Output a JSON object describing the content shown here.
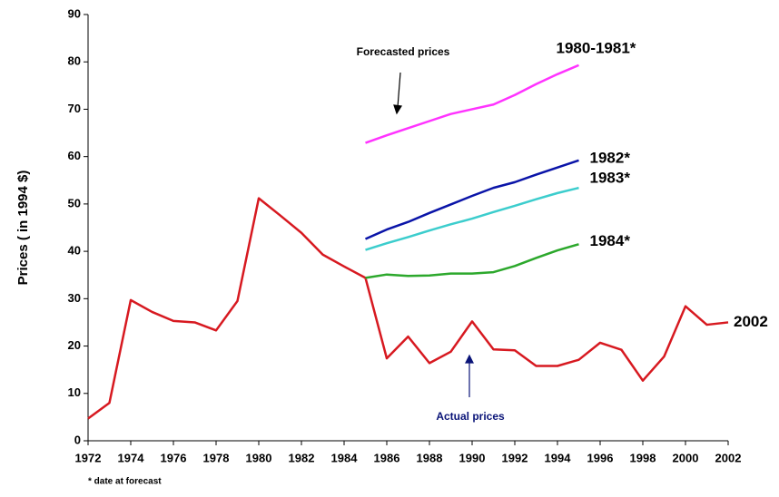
{
  "chart_data": {
    "type": "line",
    "y_label": "Prices ( in 1994 $)",
    "annotations": [
      "Forecasted prices",
      "Actual prices"
    ],
    "footnote": "* date at forecast",
    "xlim": [
      1972,
      2002
    ],
    "xticks": [
      1972,
      1974,
      1976,
      1978,
      1980,
      1982,
      1984,
      1986,
      1988,
      1990,
      1992,
      1994,
      1996,
      1998,
      2000,
      2002
    ],
    "ylim": [
      0,
      90
    ],
    "yticks": [
      0,
      10,
      20,
      30,
      40,
      50,
      60,
      70,
      80,
      90
    ],
    "grid": false,
    "series": [
      {
        "name": "2002",
        "color": "#d71920",
        "x": [
          1972,
          1973,
          1974,
          1975,
          1976,
          1977,
          1978,
          1979,
          1980,
          1981,
          1982,
          1983,
          1984,
          1985,
          1986,
          1987,
          1988,
          1989,
          1990,
          1991,
          1992,
          1993,
          1994,
          1995,
          1996,
          1997,
          1998,
          1999,
          2000,
          2001,
          2002
        ],
        "values": [
          4.7,
          8,
          29.7,
          27.2,
          25.3,
          25,
          23.3,
          29.5,
          51.2,
          47.6,
          43.9,
          39.3,
          36.8,
          34.4,
          17.4,
          22,
          16.4,
          18.8,
          25.2,
          19.3,
          19.1,
          15.8,
          15.8,
          17.1,
          20.7,
          19.2,
          12.7,
          17.8,
          28.4,
          24.5,
          25
        ]
      },
      {
        "name": "1980-1981*",
        "color": "#ff33ff",
        "x": [
          1985,
          1986,
          1987,
          1988,
          1989,
          1990,
          1991,
          1992,
          1993,
          1994,
          1995
        ],
        "values": [
          62.9,
          64.5,
          66,
          67.5,
          69,
          70,
          71,
          73,
          75.3,
          77.4,
          79.3
        ]
      },
      {
        "name": "1982*",
        "color": "#0a14a8",
        "x": [
          1985,
          1986,
          1987,
          1988,
          1989,
          1990,
          1991,
          1992,
          1993,
          1994,
          1995
        ],
        "values": [
          42.6,
          44.6,
          46.2,
          48.1,
          49.9,
          51.7,
          53.4,
          54.6,
          56.2,
          57.7,
          59.2
        ]
      },
      {
        "name": "1983*",
        "color": "#3ccdcd",
        "x": [
          1985,
          1986,
          1987,
          1988,
          1989,
          1990,
          1991,
          1992,
          1993,
          1994,
          1995
        ],
        "values": [
          40.3,
          41.7,
          43,
          44.4,
          45.7,
          46.9,
          48.3,
          49.6,
          51,
          52.3,
          53.4
        ]
      },
      {
        "name": "1984*",
        "color": "#2ca82c",
        "x": [
          1985,
          1986,
          1987,
          1988,
          1989,
          1990,
          1991,
          1992,
          1993,
          1994,
          1995
        ],
        "values": [
          34.4,
          35.1,
          34.8,
          34.9,
          35.3,
          35.3,
          35.6,
          36.9,
          38.6,
          40.2,
          41.5
        ]
      }
    ]
  }
}
